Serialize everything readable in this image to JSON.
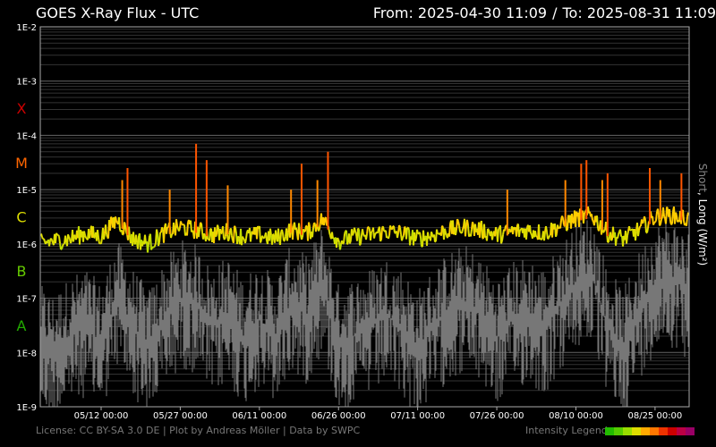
{
  "header": {
    "title": "GOES X-Ray Flux - UTC",
    "from_label": "From: 2025-04-30 11:09",
    "separator": "/",
    "to_label": "To: 2025-08-31 11:09"
  },
  "footer": {
    "license": "License: CC BY-SA 3.0 DE | Plot by Andreas Möller | Data by SWPC",
    "legend_label": "Intensity Legend",
    "legend_colors": [
      "#22bb00",
      "#55cc00",
      "#99dd00",
      "#dddd00",
      "#ffaa00",
      "#ff7700",
      "#ee3300",
      "#cc0000",
      "#bb0044",
      "#990066"
    ]
  },
  "chart_data": {
    "type": "line",
    "title": "GOES X-Ray Flux - UTC",
    "ylabel_short": "Short",
    "ylabel_sep": ",",
    "ylabel_long": "Long (W/m²)",
    "yscale": "log",
    "ylim": [
      1e-09,
      0.01
    ],
    "xlim": [
      "2025-04-30 11:09",
      "2025-08-31 11:09"
    ],
    "y_ticks": [
      {
        "value": 0.01,
        "label": "1E-2"
      },
      {
        "value": 0.001,
        "label": "1E-3"
      },
      {
        "value": 0.0001,
        "label": "1E-4"
      },
      {
        "value": 1e-05,
        "label": "1E-5"
      },
      {
        "value": 1e-06,
        "label": "1E-6"
      },
      {
        "value": 1e-07,
        "label": "1E-7"
      },
      {
        "value": 1e-08,
        "label": "1E-8"
      },
      {
        "value": 1e-09,
        "label": "1E-9"
      }
    ],
    "flare_classes": [
      {
        "label": "X",
        "value": 0.000316,
        "color": "#cc0000"
      },
      {
        "label": "M",
        "value": 3.16e-05,
        "color": "#ff6600"
      },
      {
        "label": "C",
        "value": 3.16e-06,
        "color": "#dddd00"
      },
      {
        "label": "B",
        "value": 3.16e-07,
        "color": "#66cc00"
      },
      {
        "label": "A",
        "value": 3.16e-08,
        "color": "#22aa00"
      }
    ],
    "x_ticks": [
      {
        "date": "2025-05-12",
        "label": "05/12 00:00"
      },
      {
        "date": "2025-05-27",
        "label": "05/27 00:00"
      },
      {
        "date": "2025-06-11",
        "label": "06/11 00:00"
      },
      {
        "date": "2025-06-26",
        "label": "06/26 00:00"
      },
      {
        "date": "2025-07-11",
        "label": "07/11 00:00"
      },
      {
        "date": "2025-07-26",
        "label": "07/26 00:00"
      },
      {
        "date": "2025-08-10",
        "label": "08/10 00:00"
      },
      {
        "date": "2025-08-25",
        "label": "08/25 00:00"
      }
    ],
    "grid": true,
    "series": [
      {
        "name": "Long",
        "color": "intensity",
        "x": [
          "2025-04-30",
          "2025-05-03",
          "2025-05-06",
          "2025-05-09",
          "2025-05-12",
          "2025-05-15",
          "2025-05-18",
          "2025-05-21",
          "2025-05-24",
          "2025-05-27",
          "2025-05-30",
          "2025-06-02",
          "2025-06-05",
          "2025-06-08",
          "2025-06-11",
          "2025-06-14",
          "2025-06-17",
          "2025-06-20",
          "2025-06-23",
          "2025-06-26",
          "2025-06-29",
          "2025-07-02",
          "2025-07-05",
          "2025-07-08",
          "2025-07-11",
          "2025-07-14",
          "2025-07-17",
          "2025-07-20",
          "2025-07-23",
          "2025-07-26",
          "2025-07-29",
          "2025-08-01",
          "2025-08-04",
          "2025-08-07",
          "2025-08-10",
          "2025-08-13",
          "2025-08-16",
          "2025-08-19",
          "2025-08-22",
          "2025-08-25",
          "2025-08-28",
          "2025-08-31"
        ],
        "values": [
          9e-07,
          1e-06,
          1.1e-06,
          1.4e-06,
          1.2e-06,
          2.5e-06,
          1.1e-06,
          9e-07,
          1.4e-06,
          1.8e-06,
          1.6e-06,
          1.3e-06,
          1.5e-06,
          1.2e-06,
          1.3e-06,
          1.1e-06,
          1.6e-06,
          1.4e-06,
          2.5e-06,
          1e-06,
          1.2e-06,
          1.3e-06,
          1.5e-06,
          1.4e-06,
          1.1e-06,
          1.3e-06,
          1.6e-06,
          1.8e-06,
          1.6e-06,
          1.3e-06,
          1.5e-06,
          1.6e-06,
          1.4e-06,
          1.9e-06,
          2.6e-06,
          3e-06,
          1.4e-06,
          1.1e-06,
          1.6e-06,
          2.8e-06,
          3e-06,
          2.6e-06
        ]
      },
      {
        "name": "Short",
        "color": "#777777",
        "x": [
          "2025-04-30",
          "2025-05-03",
          "2025-05-06",
          "2025-05-09",
          "2025-05-12",
          "2025-05-15",
          "2025-05-18",
          "2025-05-21",
          "2025-05-24",
          "2025-05-27",
          "2025-05-30",
          "2025-06-02",
          "2025-06-05",
          "2025-06-08",
          "2025-06-11",
          "2025-06-14",
          "2025-06-17",
          "2025-06-20",
          "2025-06-23",
          "2025-06-26",
          "2025-06-29",
          "2025-07-02",
          "2025-07-05",
          "2025-07-08",
          "2025-07-11",
          "2025-07-14",
          "2025-07-17",
          "2025-07-20",
          "2025-07-23",
          "2025-07-26",
          "2025-07-29",
          "2025-08-01",
          "2025-08-04",
          "2025-08-07",
          "2025-08-10",
          "2025-08-13",
          "2025-08-16",
          "2025-08-19",
          "2025-08-22",
          "2025-08-25",
          "2025-08-28",
          "2025-08-31"
        ],
        "values": [
          1.5e-08,
          1e-08,
          2e-08,
          3e-08,
          1.5e-08,
          1e-07,
          3e-08,
          1.2e-08,
          4e-08,
          1e-07,
          8e-08,
          3e-08,
          5e-08,
          2e-08,
          4e-08,
          2e-08,
          8e-08,
          5e-08,
          2e-07,
          1.5e-08,
          2e-08,
          3e-08,
          5e-08,
          3e-08,
          1.2e-08,
          3e-08,
          6e-08,
          8e-08,
          5e-08,
          2e-08,
          4e-08,
          5e-08,
          3e-08,
          8e-08,
          2e-07,
          3e-07,
          3e-08,
          1.2e-08,
          6e-08,
          2e-07,
          2.5e-07,
          1.5e-07
        ]
      }
    ],
    "flare_spikes": [
      {
        "date": "2025-05-16",
        "value": 1.5e-05
      },
      {
        "date": "2025-05-17",
        "value": 2.5e-05
      },
      {
        "date": "2025-05-25",
        "value": 1e-05
      },
      {
        "date": "2025-05-30",
        "value": 7e-05
      },
      {
        "date": "2025-06-01",
        "value": 3.5e-05
      },
      {
        "date": "2025-06-05",
        "value": 1.2e-05
      },
      {
        "date": "2025-06-17",
        "value": 1e-05
      },
      {
        "date": "2025-06-19",
        "value": 3e-05
      },
      {
        "date": "2025-06-22",
        "value": 1.5e-05
      },
      {
        "date": "2025-06-24",
        "value": 5e-05
      },
      {
        "date": "2025-07-28",
        "value": 1e-05
      },
      {
        "date": "2025-08-08",
        "value": 1.5e-05
      },
      {
        "date": "2025-08-11",
        "value": 3e-05
      },
      {
        "date": "2025-08-12",
        "value": 3.5e-05
      },
      {
        "date": "2025-08-15",
        "value": 1.5e-05
      },
      {
        "date": "2025-08-16",
        "value": 2e-05
      },
      {
        "date": "2025-08-24",
        "value": 2.5e-05
      },
      {
        "date": "2025-08-26",
        "value": 1.5e-05
      },
      {
        "date": "2025-08-30",
        "value": 2e-05
      }
    ]
  }
}
